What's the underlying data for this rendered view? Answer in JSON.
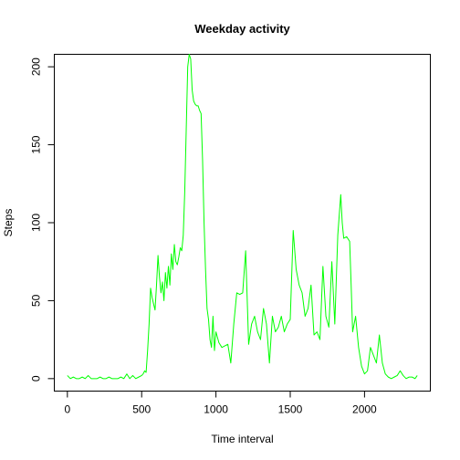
{
  "chart_data": {
    "type": "line",
    "title": "Weekday activity",
    "xlabel": "Time interval",
    "ylabel": "Steps",
    "xlim": [
      -88,
      2443
    ],
    "ylim": [
      -8,
      208
    ],
    "x_ticks": [
      0,
      500,
      1000,
      1500,
      2000
    ],
    "y_ticks": [
      0,
      50,
      100,
      150,
      200
    ],
    "grid": false,
    "color": "#00ff00",
    "series": [
      {
        "x": [
          0,
          20,
          40,
          60,
          80,
          100,
          120,
          140,
          160,
          180,
          200,
          220,
          240,
          260,
          280,
          300,
          320,
          340,
          360,
          380,
          400,
          420,
          440,
          460,
          480,
          500,
          510,
          520,
          530,
          540,
          550,
          560,
          570,
          580,
          590,
          600,
          610,
          620,
          630,
          640,
          650,
          660,
          670,
          680,
          690,
          700,
          710,
          720,
          730,
          740,
          750,
          760,
          770,
          780,
          790,
          800,
          810,
          820,
          830,
          840,
          850,
          860,
          870,
          880,
          890,
          900,
          910,
          920,
          930,
          940,
          950,
          960,
          970,
          980,
          990,
          1000,
          1020,
          1040,
          1060,
          1080,
          1100,
          1120,
          1140,
          1160,
          1180,
          1200,
          1220,
          1240,
          1260,
          1280,
          1300,
          1320,
          1340,
          1360,
          1380,
          1400,
          1420,
          1440,
          1460,
          1480,
          1500,
          1520,
          1540,
          1550,
          1560,
          1580,
          1600,
          1620,
          1640,
          1660,
          1680,
          1700,
          1720,
          1740,
          1760,
          1780,
          1800,
          1820,
          1840,
          1850,
          1860,
          1880,
          1900,
          1910,
          1920,
          1940,
          1960,
          1980,
          2000,
          2020,
          2040,
          2060,
          2080,
          2100,
          2120,
          2140,
          2160,
          2180,
          2200,
          2220,
          2240,
          2260,
          2280,
          2300,
          2320,
          2340,
          2355
        ],
        "y": [
          2,
          0,
          1,
          0,
          0,
          1,
          0,
          2,
          0,
          0,
          0,
          1,
          0,
          0,
          1,
          0,
          0,
          0,
          1,
          0,
          3,
          0,
          2,
          0,
          1,
          2,
          3,
          5,
          4,
          18,
          35,
          58,
          52,
          48,
          44,
          60,
          79,
          65,
          55,
          62,
          50,
          68,
          58,
          72,
          60,
          80,
          70,
          86,
          75,
          73,
          78,
          84,
          82,
          92,
          120,
          160,
          200,
          208,
          205,
          185,
          178,
          176,
          175,
          175,
          172,
          170,
          140,
          100,
          70,
          45,
          38,
          25,
          20,
          40,
          18,
          30,
          23,
          20,
          21,
          22,
          10,
          35,
          55,
          54,
          55,
          82,
          22,
          35,
          40,
          30,
          25,
          45,
          35,
          10,
          40,
          30,
          33,
          40,
          30,
          35,
          38,
          95,
          70,
          65,
          60,
          55,
          40,
          45,
          60,
          28,
          30,
          25,
          72,
          40,
          33,
          75,
          35,
          92,
          118,
          100,
          90,
          91,
          88,
          60,
          30,
          40,
          20,
          8,
          3,
          5,
          20,
          15,
          10,
          28,
          10,
          3,
          1,
          0,
          1,
          2,
          5,
          2,
          0,
          1,
          1,
          0,
          2
        ]
      }
    ]
  }
}
